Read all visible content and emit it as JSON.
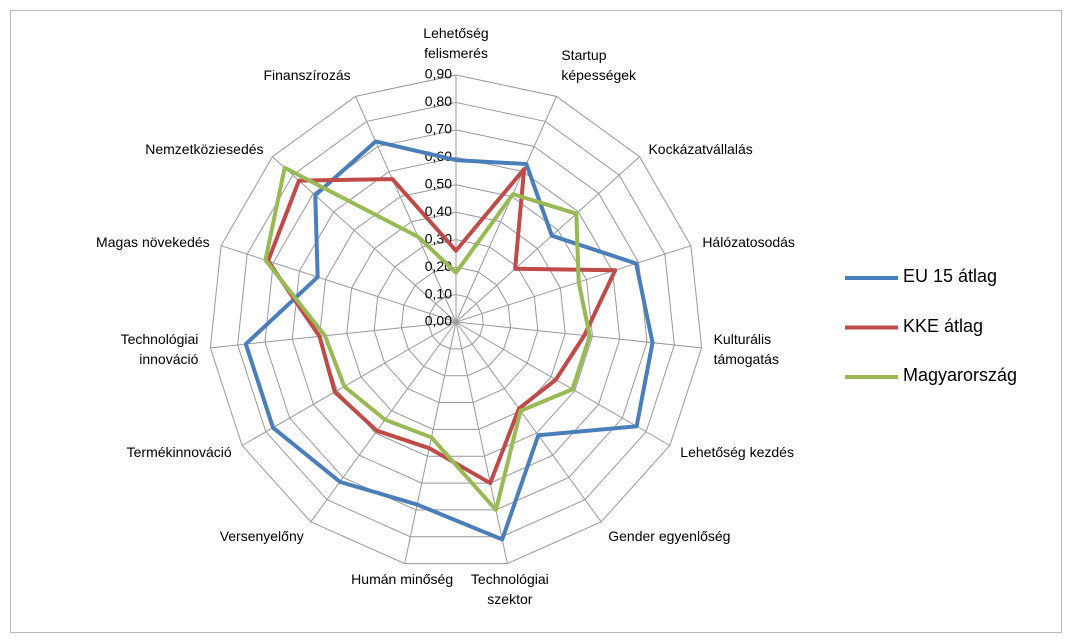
{
  "chart_data": {
    "type": "radar",
    "categories": [
      "Lehetőség felismerés",
      "Startup képességek",
      "Kockázatvállalás",
      "Hálózatosodás",
      "Kulturális támogatás",
      "Lehetőség kezdés",
      "Gender egyenlőség",
      "Technológiai szektor",
      "Humán minőség",
      "Versenyelőny",
      "Termékinnováció",
      "Technológiai innováció",
      "Magas növekedés",
      "Nemzetköziesedés",
      "Finanszírozás"
    ],
    "series": [
      {
        "name": "EU 15 átlag",
        "color": "#4a7ebb",
        "values": [
          0.59,
          0.63,
          0.47,
          0.69,
          0.72,
          0.76,
          0.51,
          0.81,
          0.68,
          0.72,
          0.77,
          0.77,
          0.53,
          0.69,
          0.72
        ]
      },
      {
        "name": "KKE átlag",
        "color": "#be4b48",
        "values": [
          0.26,
          0.61,
          0.29,
          0.61,
          0.47,
          0.42,
          0.39,
          0.6,
          0.47,
          0.49,
          0.51,
          0.5,
          0.72,
          0.77,
          0.57
        ]
      },
      {
        "name": "Magyarország",
        "color": "#98b954",
        "values": [
          0.18,
          0.51,
          0.59,
          0.47,
          0.49,
          0.49,
          0.4,
          0.7,
          0.43,
          0.44,
          0.47,
          0.48,
          0.73,
          0.84,
          0.34
        ]
      }
    ],
    "ylim": [
      0,
      0.9
    ],
    "yticks": [
      {
        "value": 0,
        "label": "0,00"
      },
      {
        "value": 0.1,
        "label": "0,10"
      },
      {
        "value": 0.2,
        "label": "0,20"
      },
      {
        "value": 0.3,
        "label": "0,30"
      },
      {
        "value": 0.4,
        "label": "0,40"
      },
      {
        "value": 0.5,
        "label": "0,50"
      },
      {
        "value": 0.6,
        "label": "0,60"
      },
      {
        "value": 0.7,
        "label": "0,70"
      },
      {
        "value": 0.8,
        "label": "0,80"
      },
      {
        "value": 0.9,
        "label": "0,90"
      }
    ],
    "grid": true,
    "legend": "right"
  }
}
